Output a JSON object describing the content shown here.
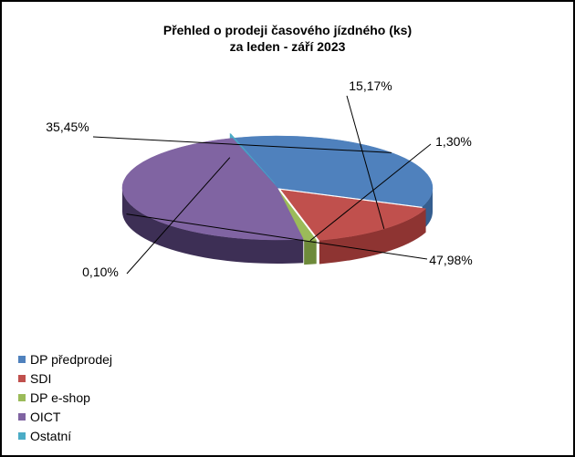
{
  "chart_data": {
    "type": "pie",
    "title_line1": "Přehled o prodeji časového jízdného (ks)",
    "title_line2": "za leden - září 2023",
    "series": [
      {
        "name": "DP předprodej",
        "value": 35.45,
        "label": "35,45%",
        "color": "#4f81bd",
        "dark": "#355e8f"
      },
      {
        "name": "SDI",
        "value": 15.17,
        "label": "15,17%",
        "color": "#c0504d",
        "dark": "#8e3432"
      },
      {
        "name": "DP e-shop",
        "value": 1.3,
        "label": "1,30%",
        "color": "#9bbb59",
        "dark": "#6e8a3a"
      },
      {
        "name": "OICT",
        "value": 47.98,
        "label": "47,98%",
        "color": "#8064a2",
        "dark": "#3d2f55"
      },
      {
        "name": "Ostatní",
        "value": 0.1,
        "label": "0,10%",
        "color": "#4bacc6",
        "dark": "#2e7f92"
      }
    ],
    "legend_position": "bottom-left"
  }
}
